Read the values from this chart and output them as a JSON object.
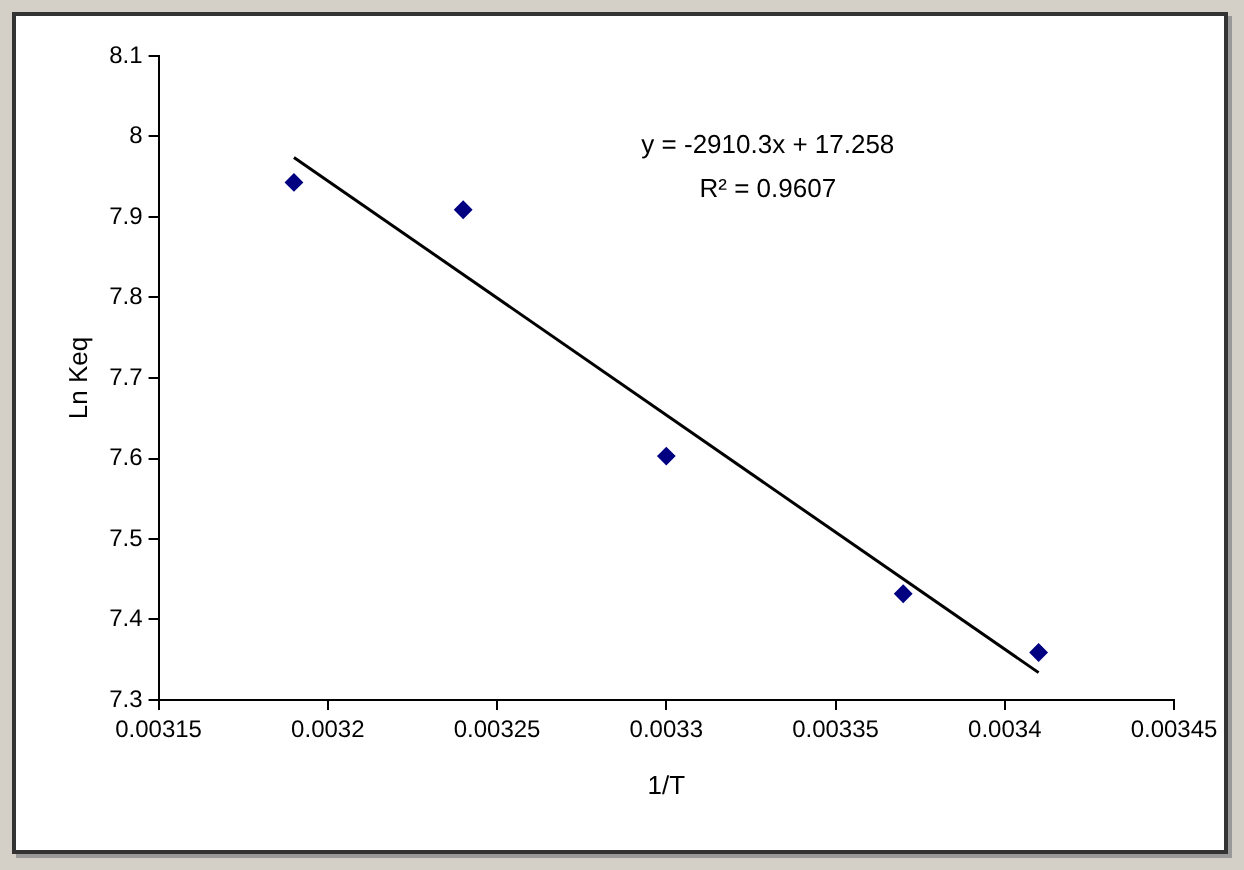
{
  "chart_data": {
    "type": "scatter",
    "xlabel": "1/T",
    "ylabel": "Ln Keq",
    "xlim": [
      0.00315,
      0.00345
    ],
    "xticks": [
      0.00315,
      0.0032,
      0.00325,
      0.0033,
      0.00335,
      0.0034,
      0.00345
    ],
    "ylim": [
      7.3,
      8.1
    ],
    "yticks": [
      7.3,
      7.4,
      7.5,
      7.6,
      7.7,
      7.8,
      7.9,
      8,
      8.1
    ],
    "series": [
      {
        "color": "#000080",
        "x": [
          0.00319,
          0.00324,
          0.0033,
          0.00337,
          0.00341
        ],
        "values": [
          7.943,
          7.909,
          7.603,
          7.432,
          7.359
        ],
        "marker": "diamond"
      },
      {
        "type": "line",
        "color": "#000000",
        "x": [
          0.00319,
          0.00341
        ],
        "values": [
          7.974,
          7.334
        ],
        "marker": "none",
        "line_style": "solid"
      }
    ],
    "annotations": [
      "y = -2910.3x + 17.258",
      "R² = 0.9607"
    ],
    "grid": false,
    "legend": false
  }
}
